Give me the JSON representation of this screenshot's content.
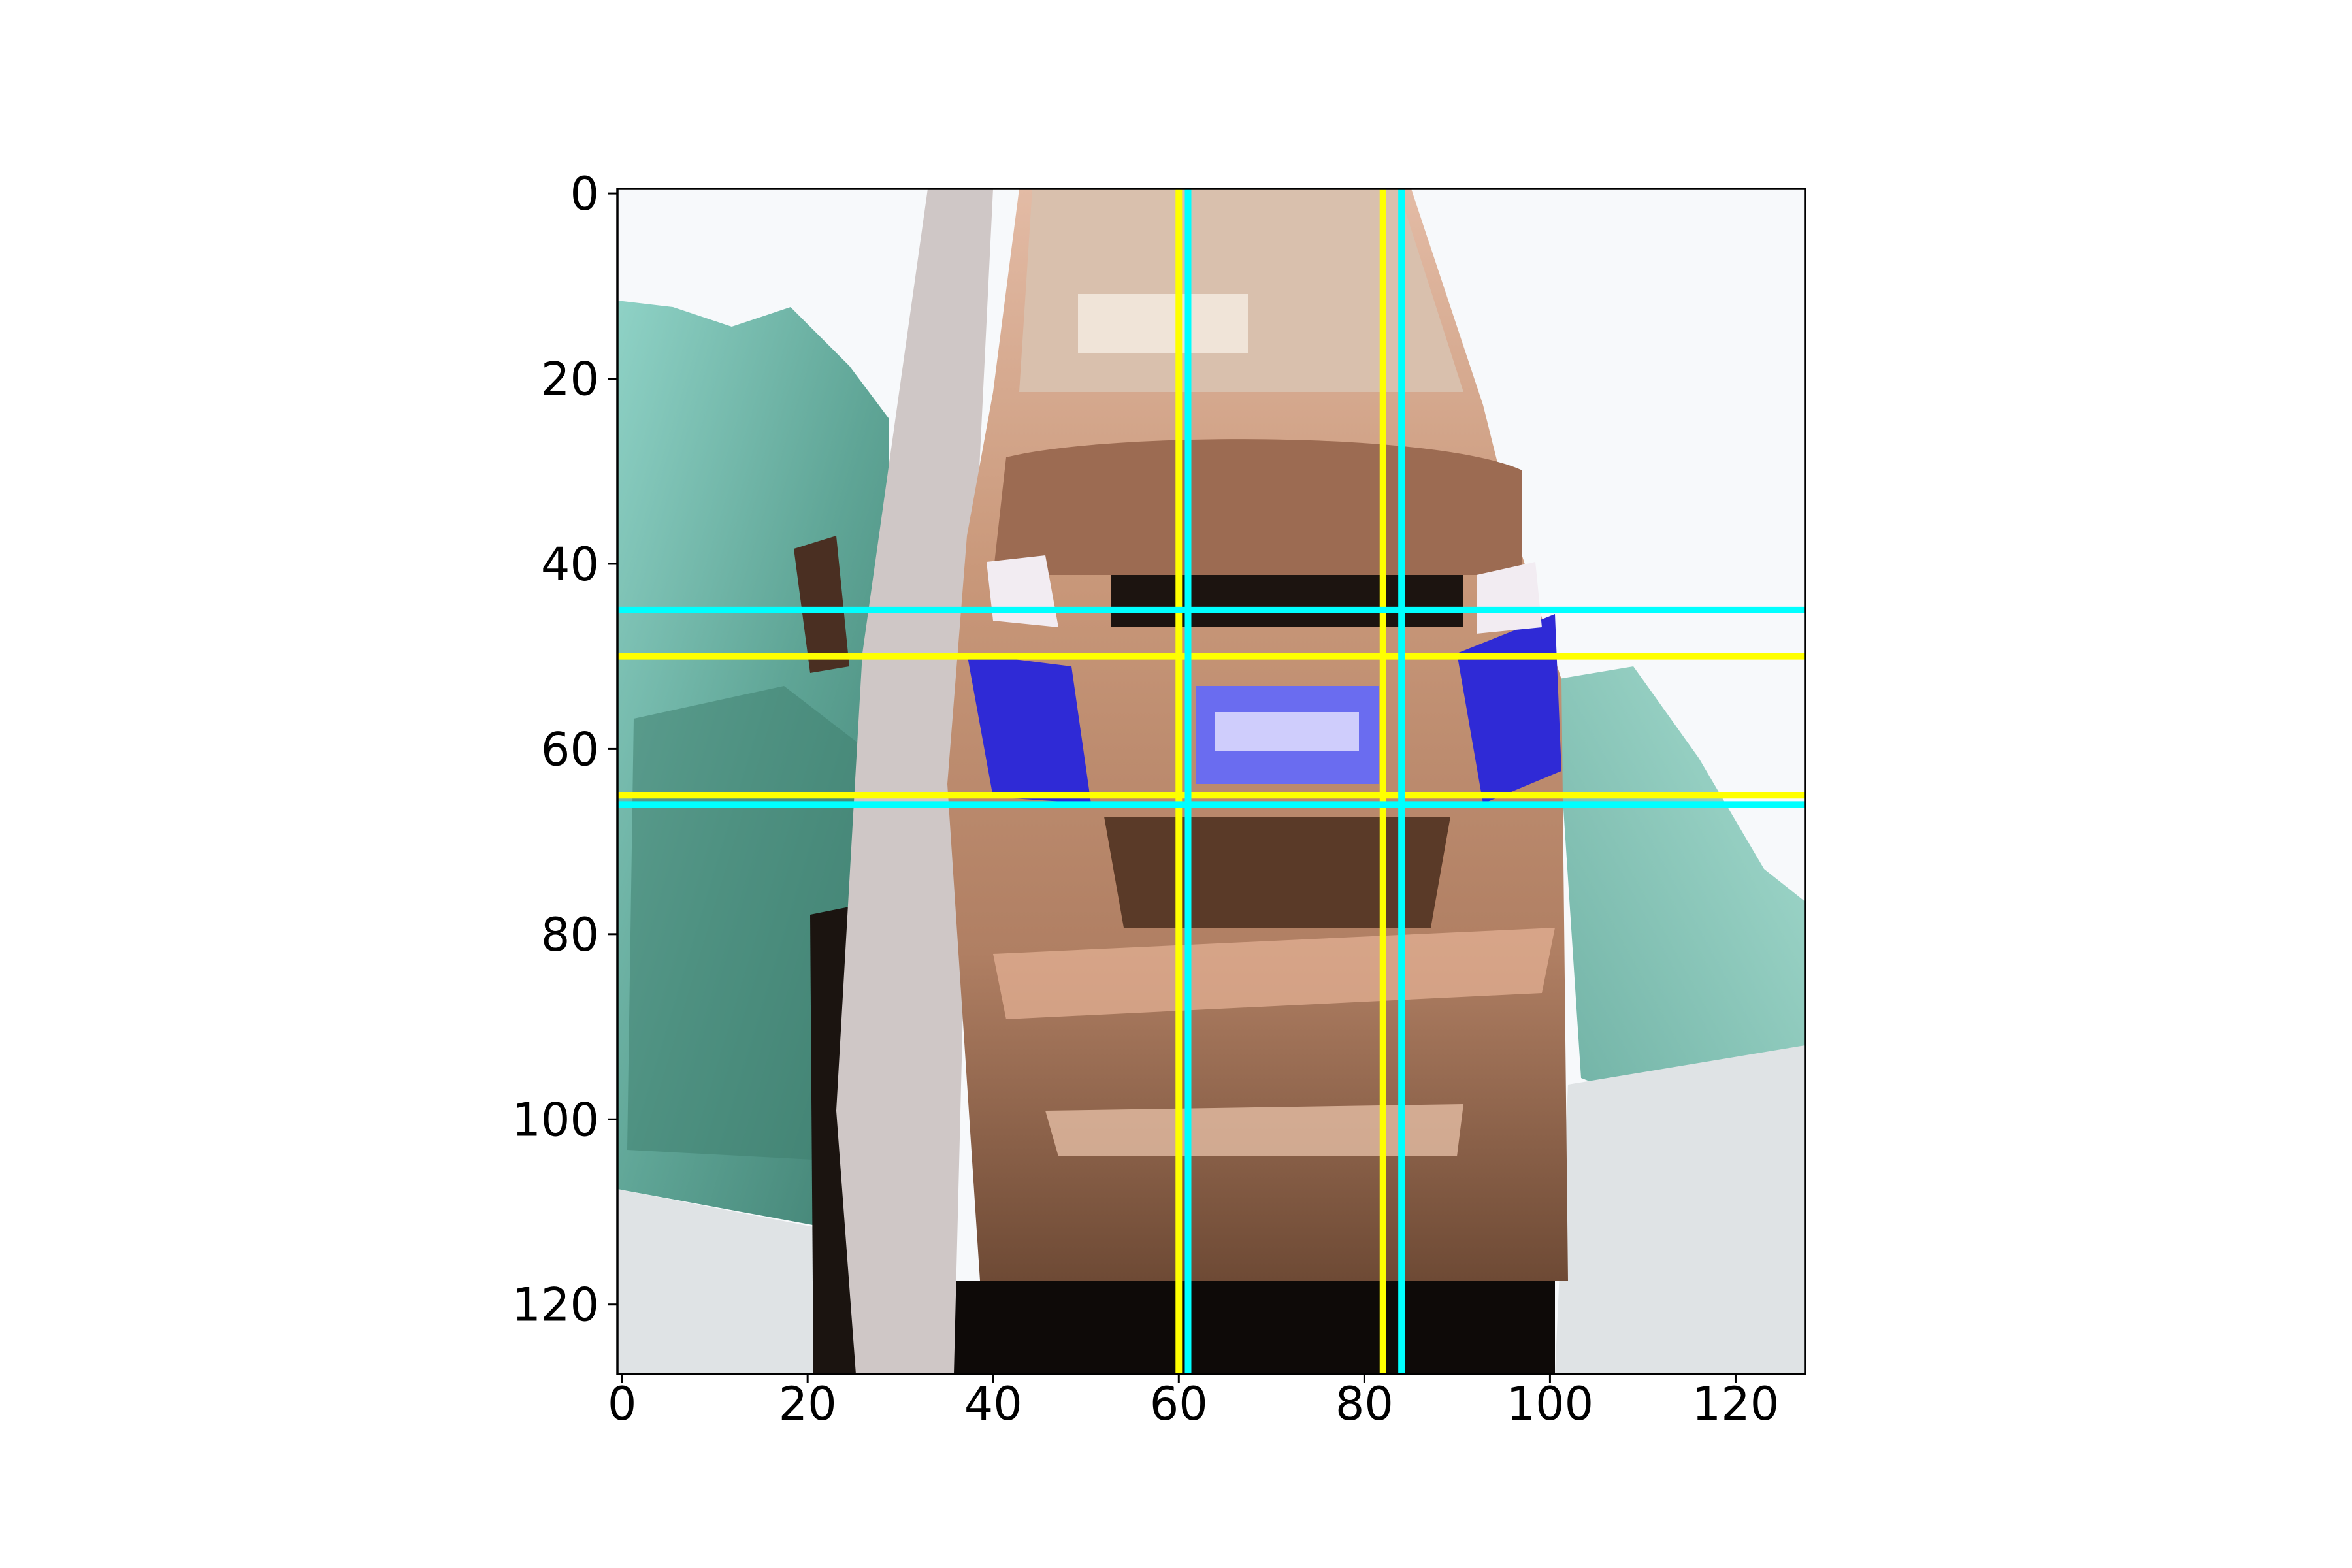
{
  "chart_data": {
    "type": "image",
    "title": "",
    "xlabel": "",
    "ylabel": "",
    "image_extent": {
      "x": [
        -0.5,
        127.5
      ],
      "y": [
        127.5,
        -0.5
      ]
    },
    "xlim": [
      -0.5,
      127.5
    ],
    "ylim": [
      127.5,
      -0.5
    ],
    "x_ticks": [
      0,
      20,
      40,
      60,
      80,
      100,
      120
    ],
    "y_ticks": [
      0,
      20,
      40,
      60,
      80,
      100,
      120
    ],
    "x_tick_labels": [
      "0",
      "20",
      "40",
      "60",
      "80",
      "100",
      "120"
    ],
    "y_tick_labels": [
      "0",
      "20",
      "40",
      "60",
      "80",
      "100",
      "120"
    ],
    "overlay_lines": [
      {
        "orientation": "vertical",
        "value": 60,
        "color": "#ffff00"
      },
      {
        "orientation": "vertical",
        "value": 82,
        "color": "#ffff00"
      },
      {
        "orientation": "horizontal",
        "value": 50,
        "color": "#ffff00"
      },
      {
        "orientation": "horizontal",
        "value": 65,
        "color": "#ffff00"
      },
      {
        "orientation": "vertical",
        "value": 61,
        "color": "#00ffff"
      },
      {
        "orientation": "vertical",
        "value": 84,
        "color": "#00ffff"
      },
      {
        "orientation": "horizontal",
        "value": 45,
        "color": "#00ffff"
      },
      {
        "orientation": "horizontal",
        "value": 66,
        "color": "#00ffff"
      }
    ],
    "grid": false
  },
  "image": {
    "subject": "front view of a brown/bronze car with blue headlights and license plate on a road with green roadside vegetation",
    "colors": {
      "sky": "#f7f9fb",
      "vegetation": "#7cc4b8",
      "vegetation_dark": "#3f7f70",
      "road": "#dfe3e5",
      "car_body": "#b98a6e",
      "car_body_light": "#e7b497",
      "car_body_dark": "#5a3a28",
      "windshield": "#d9c0ad",
      "headlight_blue": "#2f2ad6",
      "plate": "#6a6cf0",
      "tire_black": "#0e0a08"
    }
  }
}
